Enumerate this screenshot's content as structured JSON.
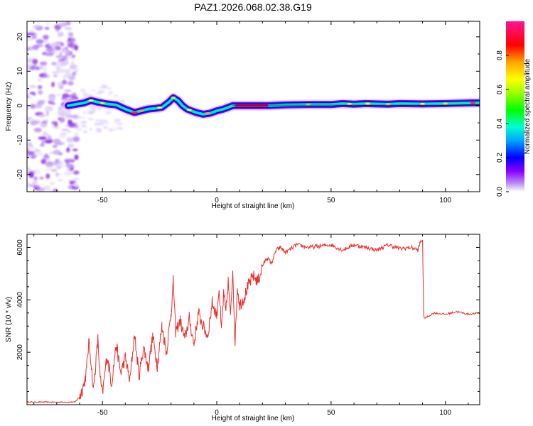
{
  "title": "PAZ1.2026.068.02.38.G19",
  "chart_data": [
    {
      "type": "heatmap",
      "xlabel": "Height of straight line (km)",
      "ylabel": "Frequency (Hz)",
      "xlim": [
        -83,
        115
      ],
      "ylim": [
        -25,
        24.5
      ],
      "x_ticks": [
        -50,
        0,
        50,
        100
      ],
      "y_ticks": [
        -20,
        -10,
        0,
        10,
        20
      ],
      "ridge": {
        "x": [
          -65,
          -58,
          -55,
          -52,
          -48,
          -44,
          -40,
          -36,
          -33,
          -30,
          -27,
          -24,
          -21,
          -19,
          -17,
          -15,
          -13,
          -11,
          -9,
          -6,
          -3,
          0,
          3,
          5,
          7,
          8,
          12,
          22,
          30,
          40,
          50,
          55,
          60,
          65,
          70,
          75,
          80,
          90,
          100,
          112,
          115
        ],
        "y": [
          0.0,
          0.8,
          1.5,
          1.0,
          0.5,
          0.2,
          -1.0,
          -2.0,
          -1.5,
          -1.0,
          -0.8,
          -0.5,
          1.0,
          2.3,
          1.5,
          0.0,
          -1.0,
          -1.5,
          -2.0,
          -2.5,
          -2.2,
          -1.5,
          -1.0,
          -0.5,
          0.0,
          0.0,
          0.0,
          0.0,
          0.2,
          0.3,
          0.3,
          0.6,
          0.4,
          0.6,
          0.5,
          0.4,
          0.6,
          0.5,
          0.6,
          0.8,
          0.8
        ]
      },
      "colorbar": {
        "label": "Normalized spectral amplitude",
        "range": [
          0.0,
          1.0
        ],
        "ticks": [
          "0.0",
          "0.2",
          "0.4",
          "0.6",
          "0.8"
        ],
        "colormap": [
          "#ffffff",
          "#b88cf5",
          "#8a00ff",
          "#0000ff",
          "#00a5ff",
          "#00ffd0",
          "#00ff00",
          "#9dff00",
          "#ffff00",
          "#ffa500",
          "#ff0000",
          "#ff1493"
        ]
      }
    },
    {
      "type": "line",
      "xlabel": "Height of straight line (km)",
      "ylabel": "SNR (10 * v/v)",
      "xlim": [
        -83,
        115
      ],
      "ylim": [
        0,
        6500
      ],
      "x_ticks": [
        -50,
        0,
        50,
        100
      ],
      "y_ticks": [
        2000,
        4000,
        6000
      ],
      "color": "#e8302e",
      "series": [
        {
          "x": [
            -83,
            -62,
            -60,
            -58,
            -57,
            -56,
            -55,
            -54,
            -53,
            -52,
            -51,
            -50,
            -48,
            -46,
            -44,
            -42,
            -40,
            -38,
            -36,
            -34,
            -32,
            -30,
            -28,
            -26,
            -24,
            -22,
            -20,
            -19,
            -18,
            -16,
            -14,
            -12,
            -10,
            -8,
            -6,
            -4,
            -2,
            0,
            1,
            2,
            3,
            4,
            5,
            6,
            7,
            8,
            9,
            10,
            12,
            14,
            16,
            18,
            20,
            22,
            24,
            26,
            28,
            30,
            35,
            40,
            45,
            50,
            55,
            60,
            65,
            70,
            75,
            80,
            85,
            88,
            89,
            90,
            90.5,
            91,
            95,
            100,
            105,
            110,
            115
          ],
          "y": [
            100,
            100,
            300,
            800,
            1300,
            2400,
            1700,
            500,
            1500,
            2500,
            1000,
            400,
            1900,
            800,
            2300,
            1200,
            1800,
            900,
            2700,
            1100,
            2200,
            1400,
            2600,
            1500,
            3000,
            2000,
            3500,
            4700,
            2800,
            3200,
            2500,
            3300,
            2300,
            3500,
            3000,
            2600,
            3900,
            3400,
            4500,
            2800,
            4200,
            3500,
            4700,
            3300,
            5200,
            2300,
            4500,
            3800,
            4100,
            4600,
            4900,
            4700,
            5300,
            5600,
            5400,
            5900,
            6000,
            5800,
            6100,
            6000,
            6050,
            6100,
            5900,
            6100,
            6000,
            5900,
            6100,
            5950,
            6000,
            5900,
            6200,
            6300,
            3400,
            3300,
            3500,
            3450,
            3550,
            3450,
            3500
          ]
        }
      ]
    }
  ]
}
